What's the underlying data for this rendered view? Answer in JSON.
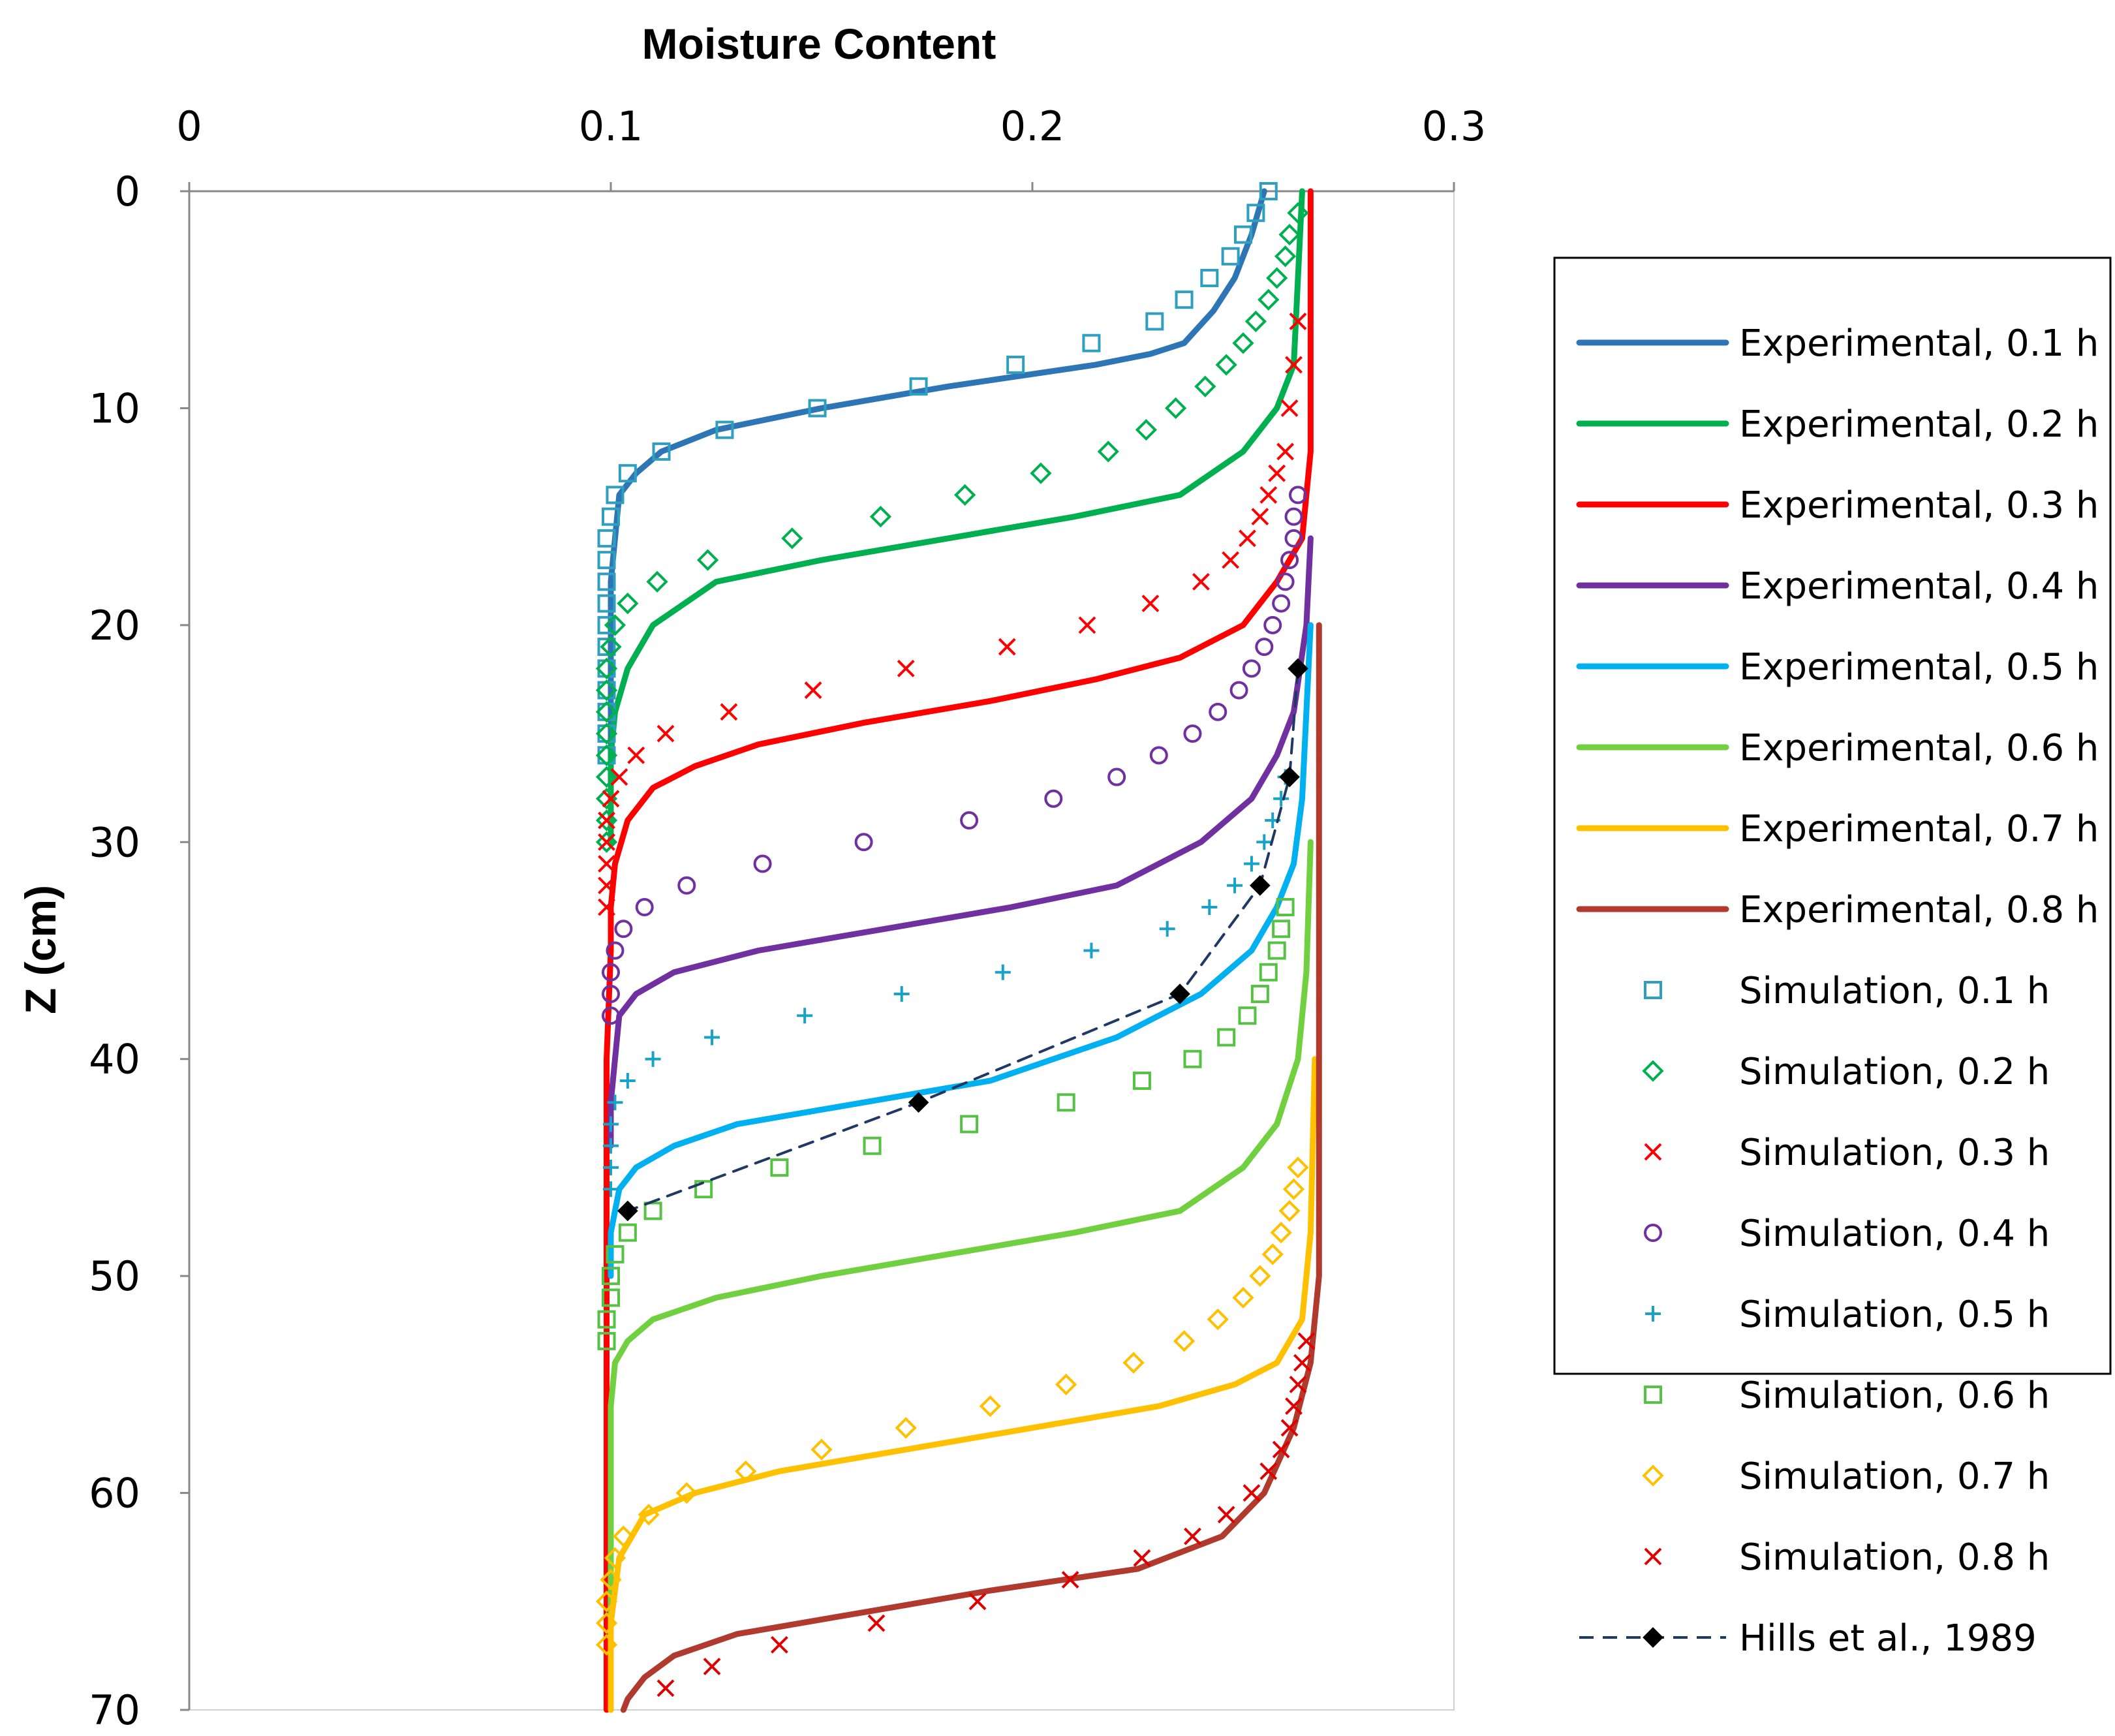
{
  "chart_data": {
    "type": "line",
    "title": "",
    "xlabel": "Moisture Content",
    "ylabel": "Z (cm)",
    "xlim": [
      0,
      0.3
    ],
    "ylim": [
      0,
      70
    ],
    "y_inverted": true,
    "x_axis_position": "top",
    "xticks": [
      "0",
      "0.1",
      "0.2",
      "0.3"
    ],
    "yticks": [
      "0",
      "10",
      "20",
      "30",
      "40",
      "50",
      "60",
      "70"
    ],
    "legend_position": "right",
    "series": [
      {
        "name": "Experimental, 0.1 h",
        "kind": "line",
        "color": "#2E75B6",
        "x": [
          0.255,
          0.252,
          0.248,
          0.243,
          0.236,
          0.228,
          0.215,
          0.18,
          0.15,
          0.125,
          0.112,
          0.106,
          0.102,
          0.101,
          0.1,
          0.1,
          0.1,
          0.1,
          0.1,
          0.1
        ],
        "y": [
          0,
          2,
          4,
          5.5,
          7,
          7.5,
          8,
          9,
          10,
          11,
          12,
          13,
          14,
          16,
          18,
          20,
          22,
          24,
          26,
          28
        ]
      },
      {
        "name": "Experimental, 0.2 h",
        "kind": "line",
        "color": "#00B050",
        "x": [
          0.264,
          0.263,
          0.262,
          0.258,
          0.25,
          0.235,
          0.21,
          0.18,
          0.15,
          0.125,
          0.11,
          0.104,
          0.101,
          0.1,
          0.1,
          0.1
        ],
        "y": [
          0,
          4,
          8,
          10,
          12,
          14,
          15,
          16,
          17,
          18,
          20,
          22,
          24,
          26,
          28,
          30
        ]
      },
      {
        "name": "Experimental, 0.3 h",
        "kind": "line",
        "color": "#FF0000",
        "x": [
          0.266,
          0.266,
          0.264,
          0.258,
          0.25,
          0.235,
          0.215,
          0.19,
          0.16,
          0.135,
          0.12,
          0.11,
          0.104,
          0.101,
          0.1,
          0.1,
          0.099,
          0.099,
          0.099,
          0.099
        ],
        "y": [
          0,
          12,
          16,
          18,
          20,
          21.5,
          22.5,
          23.5,
          24.5,
          25.5,
          26.5,
          27.5,
          29,
          31,
          33,
          35,
          40,
          50,
          60,
          70
        ]
      },
      {
        "name": "Experimental, 0.4 h",
        "kind": "line",
        "color": "#7030A0",
        "x": [
          0.266,
          0.265,
          0.262,
          0.258,
          0.252,
          0.24,
          0.22,
          0.195,
          0.165,
          0.135,
          0.115,
          0.106,
          0.102,
          0.101,
          0.1,
          0.1
        ],
        "y": [
          16,
          20,
          24,
          26,
          28,
          30,
          32,
          33,
          34,
          35,
          36,
          37,
          38,
          40,
          42,
          44
        ]
      },
      {
        "name": "Experimental, 0.5 h",
        "kind": "line",
        "color": "#00B0F0",
        "x": [
          0.266,
          0.265,
          0.264,
          0.262,
          0.258,
          0.252,
          0.24,
          0.22,
          0.19,
          0.16,
          0.13,
          0.115,
          0.106,
          0.102,
          0.101,
          0.1,
          0.1
        ],
        "y": [
          20,
          24,
          28,
          31,
          33,
          35,
          37,
          39,
          41,
          42,
          43,
          44,
          45,
          46,
          47,
          48,
          50
        ]
      },
      {
        "name": "Experimental, 0.6 h",
        "kind": "line",
        "color": "#70D040",
        "x": [
          0.266,
          0.265,
          0.263,
          0.258,
          0.25,
          0.235,
          0.21,
          0.18,
          0.15,
          0.125,
          0.11,
          0.104,
          0.101,
          0.1,
          0.1,
          0.1
        ],
        "y": [
          30,
          36,
          40,
          43,
          45,
          47,
          48,
          49,
          50,
          51,
          52,
          53,
          54,
          56,
          60,
          70
        ]
      },
      {
        "name": "Experimental, 0.7 h",
        "kind": "line",
        "color": "#FFC000",
        "x": [
          0.267,
          0.266,
          0.264,
          0.258,
          0.248,
          0.23,
          0.2,
          0.17,
          0.14,
          0.12,
          0.108,
          0.102,
          0.1,
          0.1
        ],
        "y": [
          40,
          48,
          52,
          54,
          55,
          56,
          57,
          58,
          59,
          60,
          61,
          63,
          66,
          70
        ]
      },
      {
        "name": "Experimental, 0.8 h",
        "kind": "line",
        "color": "#B03A2E",
        "x": [
          0.268,
          0.268,
          0.266,
          0.262,
          0.255,
          0.245,
          0.225,
          0.19,
          0.16,
          0.13,
          0.115,
          0.108,
          0.104,
          0.103
        ],
        "y": [
          20,
          50,
          54,
          57,
          60,
          62,
          63.5,
          64.5,
          65.5,
          66.5,
          67.5,
          68.5,
          69.5,
          70
        ]
      },
      {
        "name": "Simulation, 0.1 h",
        "kind": "marker",
        "marker": "square",
        "color": "#2E9FBF",
        "x": [
          0.256,
          0.253,
          0.25,
          0.247,
          0.242,
          0.236,
          0.229,
          0.214,
          0.196,
          0.173,
          0.149,
          0.127,
          0.112,
          0.104,
          0.101,
          0.1,
          0.099,
          0.099,
          0.099,
          0.099,
          0.099,
          0.099,
          0.099,
          0.099,
          0.099,
          0.099,
          0.099
        ],
        "y": [
          0,
          1,
          2,
          3,
          4,
          5,
          6,
          7,
          8,
          9,
          10,
          11,
          12,
          13,
          14,
          15,
          16,
          17,
          18,
          19,
          20,
          21,
          22,
          23,
          24,
          25,
          26
        ]
      },
      {
        "name": "Simulation, 0.2 h",
        "kind": "marker",
        "marker": "diamond",
        "color": "#00B050",
        "x": [
          0.263,
          0.261,
          0.26,
          0.258,
          0.256,
          0.253,
          0.25,
          0.246,
          0.241,
          0.234,
          0.227,
          0.218,
          0.202,
          0.184,
          0.164,
          0.143,
          0.123,
          0.111,
          0.104,
          0.101,
          0.1,
          0.099,
          0.099,
          0.099,
          0.099,
          0.099,
          0.099,
          0.099,
          0.099,
          0.099
        ],
        "y": [
          1,
          2,
          3,
          4,
          5,
          6,
          7,
          8,
          9,
          10,
          11,
          12,
          13,
          14,
          15,
          16,
          17,
          18,
          19,
          20,
          21,
          22,
          23,
          24,
          25,
          26,
          27,
          28,
          29,
          30
        ]
      },
      {
        "name": "Simulation, 0.3 h",
        "kind": "marker",
        "marker": "x",
        "color": "#FF0000",
        "x": [
          0.263,
          0.262,
          0.261,
          0.26,
          0.258,
          0.256,
          0.254,
          0.251,
          0.247,
          0.24,
          0.228,
          0.213,
          0.194,
          0.17,
          0.148,
          0.128,
          0.113,
          0.106,
          0.102,
          0.1,
          0.099,
          0.099,
          0.099,
          0.099,
          0.099
        ],
        "y": [
          6,
          8,
          10,
          12,
          13,
          14,
          15,
          16,
          17,
          18,
          19,
          20,
          21,
          22,
          23,
          24,
          25,
          26,
          27,
          28,
          29,
          30,
          31,
          32,
          33
        ]
      },
      {
        "name": "Simulation, 0.4 h",
        "kind": "marker",
        "marker": "circle",
        "color": "#7030A0",
        "x": [
          0.263,
          0.262,
          0.262,
          0.261,
          0.26,
          0.259,
          0.257,
          0.255,
          0.252,
          0.249,
          0.244,
          0.238,
          0.23,
          0.22,
          0.205,
          0.185,
          0.16,
          0.136,
          0.118,
          0.108,
          0.103,
          0.101,
          0.1,
          0.1,
          0.1
        ],
        "y": [
          14,
          15,
          16,
          17,
          18,
          19,
          20,
          21,
          22,
          23,
          24,
          25,
          26,
          27,
          28,
          29,
          30,
          31,
          32,
          33,
          34,
          35,
          36,
          37,
          38
        ]
      },
      {
        "name": "Simulation, 0.5 h",
        "kind": "marker",
        "marker": "plus",
        "color": "#17A2C8",
        "x": [
          0.26,
          0.259,
          0.257,
          0.255,
          0.252,
          0.248,
          0.242,
          0.232,
          0.214,
          0.193,
          0.169,
          0.146,
          0.124,
          0.11,
          0.104,
          0.101,
          0.1,
          0.1,
          0.1,
          0.1
        ],
        "y": [
          27,
          28,
          29,
          30,
          31,
          32,
          33,
          34,
          35,
          36,
          37,
          38,
          39,
          40,
          41,
          42,
          43,
          44,
          45,
          46
        ]
      },
      {
        "name": "Simulation, 0.6 h",
        "kind": "marker",
        "marker": "square",
        "color": "#55C244",
        "x": [
          0.26,
          0.259,
          0.258,
          0.256,
          0.254,
          0.251,
          0.246,
          0.238,
          0.226,
          0.208,
          0.185,
          0.162,
          0.14,
          0.122,
          0.11,
          0.104,
          0.101,
          0.1,
          0.1,
          0.099,
          0.099
        ],
        "y": [
          33,
          34,
          35,
          36,
          37,
          38,
          39,
          40,
          41,
          42,
          43,
          44,
          45,
          46,
          47,
          48,
          49,
          50,
          51,
          52,
          53
        ]
      },
      {
        "name": "Simulation, 0.7 h",
        "kind": "marker",
        "marker": "diamond",
        "color": "#FFC000",
        "x": [
          0.263,
          0.262,
          0.261,
          0.259,
          0.257,
          0.254,
          0.25,
          0.244,
          0.236,
          0.224,
          0.208,
          0.19,
          0.17,
          0.15,
          0.132,
          0.118,
          0.109,
          0.103,
          0.101,
          0.1,
          0.099,
          0.099,
          0.099
        ],
        "y": [
          45,
          46,
          47,
          48,
          49,
          50,
          51,
          52,
          53,
          54,
          55,
          56,
          57,
          58,
          59,
          60,
          61,
          62,
          63,
          64,
          65,
          66,
          67
        ]
      },
      {
        "name": "Simulation, 0.8 h",
        "kind": "marker",
        "marker": "x",
        "color": "#E00000",
        "x": [
          0.265,
          0.264,
          0.263,
          0.262,
          0.261,
          0.259,
          0.256,
          0.252,
          0.246,
          0.238,
          0.226,
          0.209,
          0.187,
          0.163,
          0.14,
          0.124,
          0.113
        ],
        "y": [
          53,
          54,
          55,
          56,
          57,
          58,
          59,
          60,
          61,
          62,
          63,
          64,
          65,
          66,
          67,
          68,
          69
        ]
      },
      {
        "name": "Hills et al., 1989",
        "kind": "dashed-line-marker",
        "marker": "filled-diamond",
        "color": "#1F3864",
        "x": [
          0.263,
          0.261,
          0.254,
          0.235,
          0.173,
          0.104
        ],
        "y": [
          22,
          27,
          32,
          37,
          42,
          47
        ]
      }
    ]
  }
}
